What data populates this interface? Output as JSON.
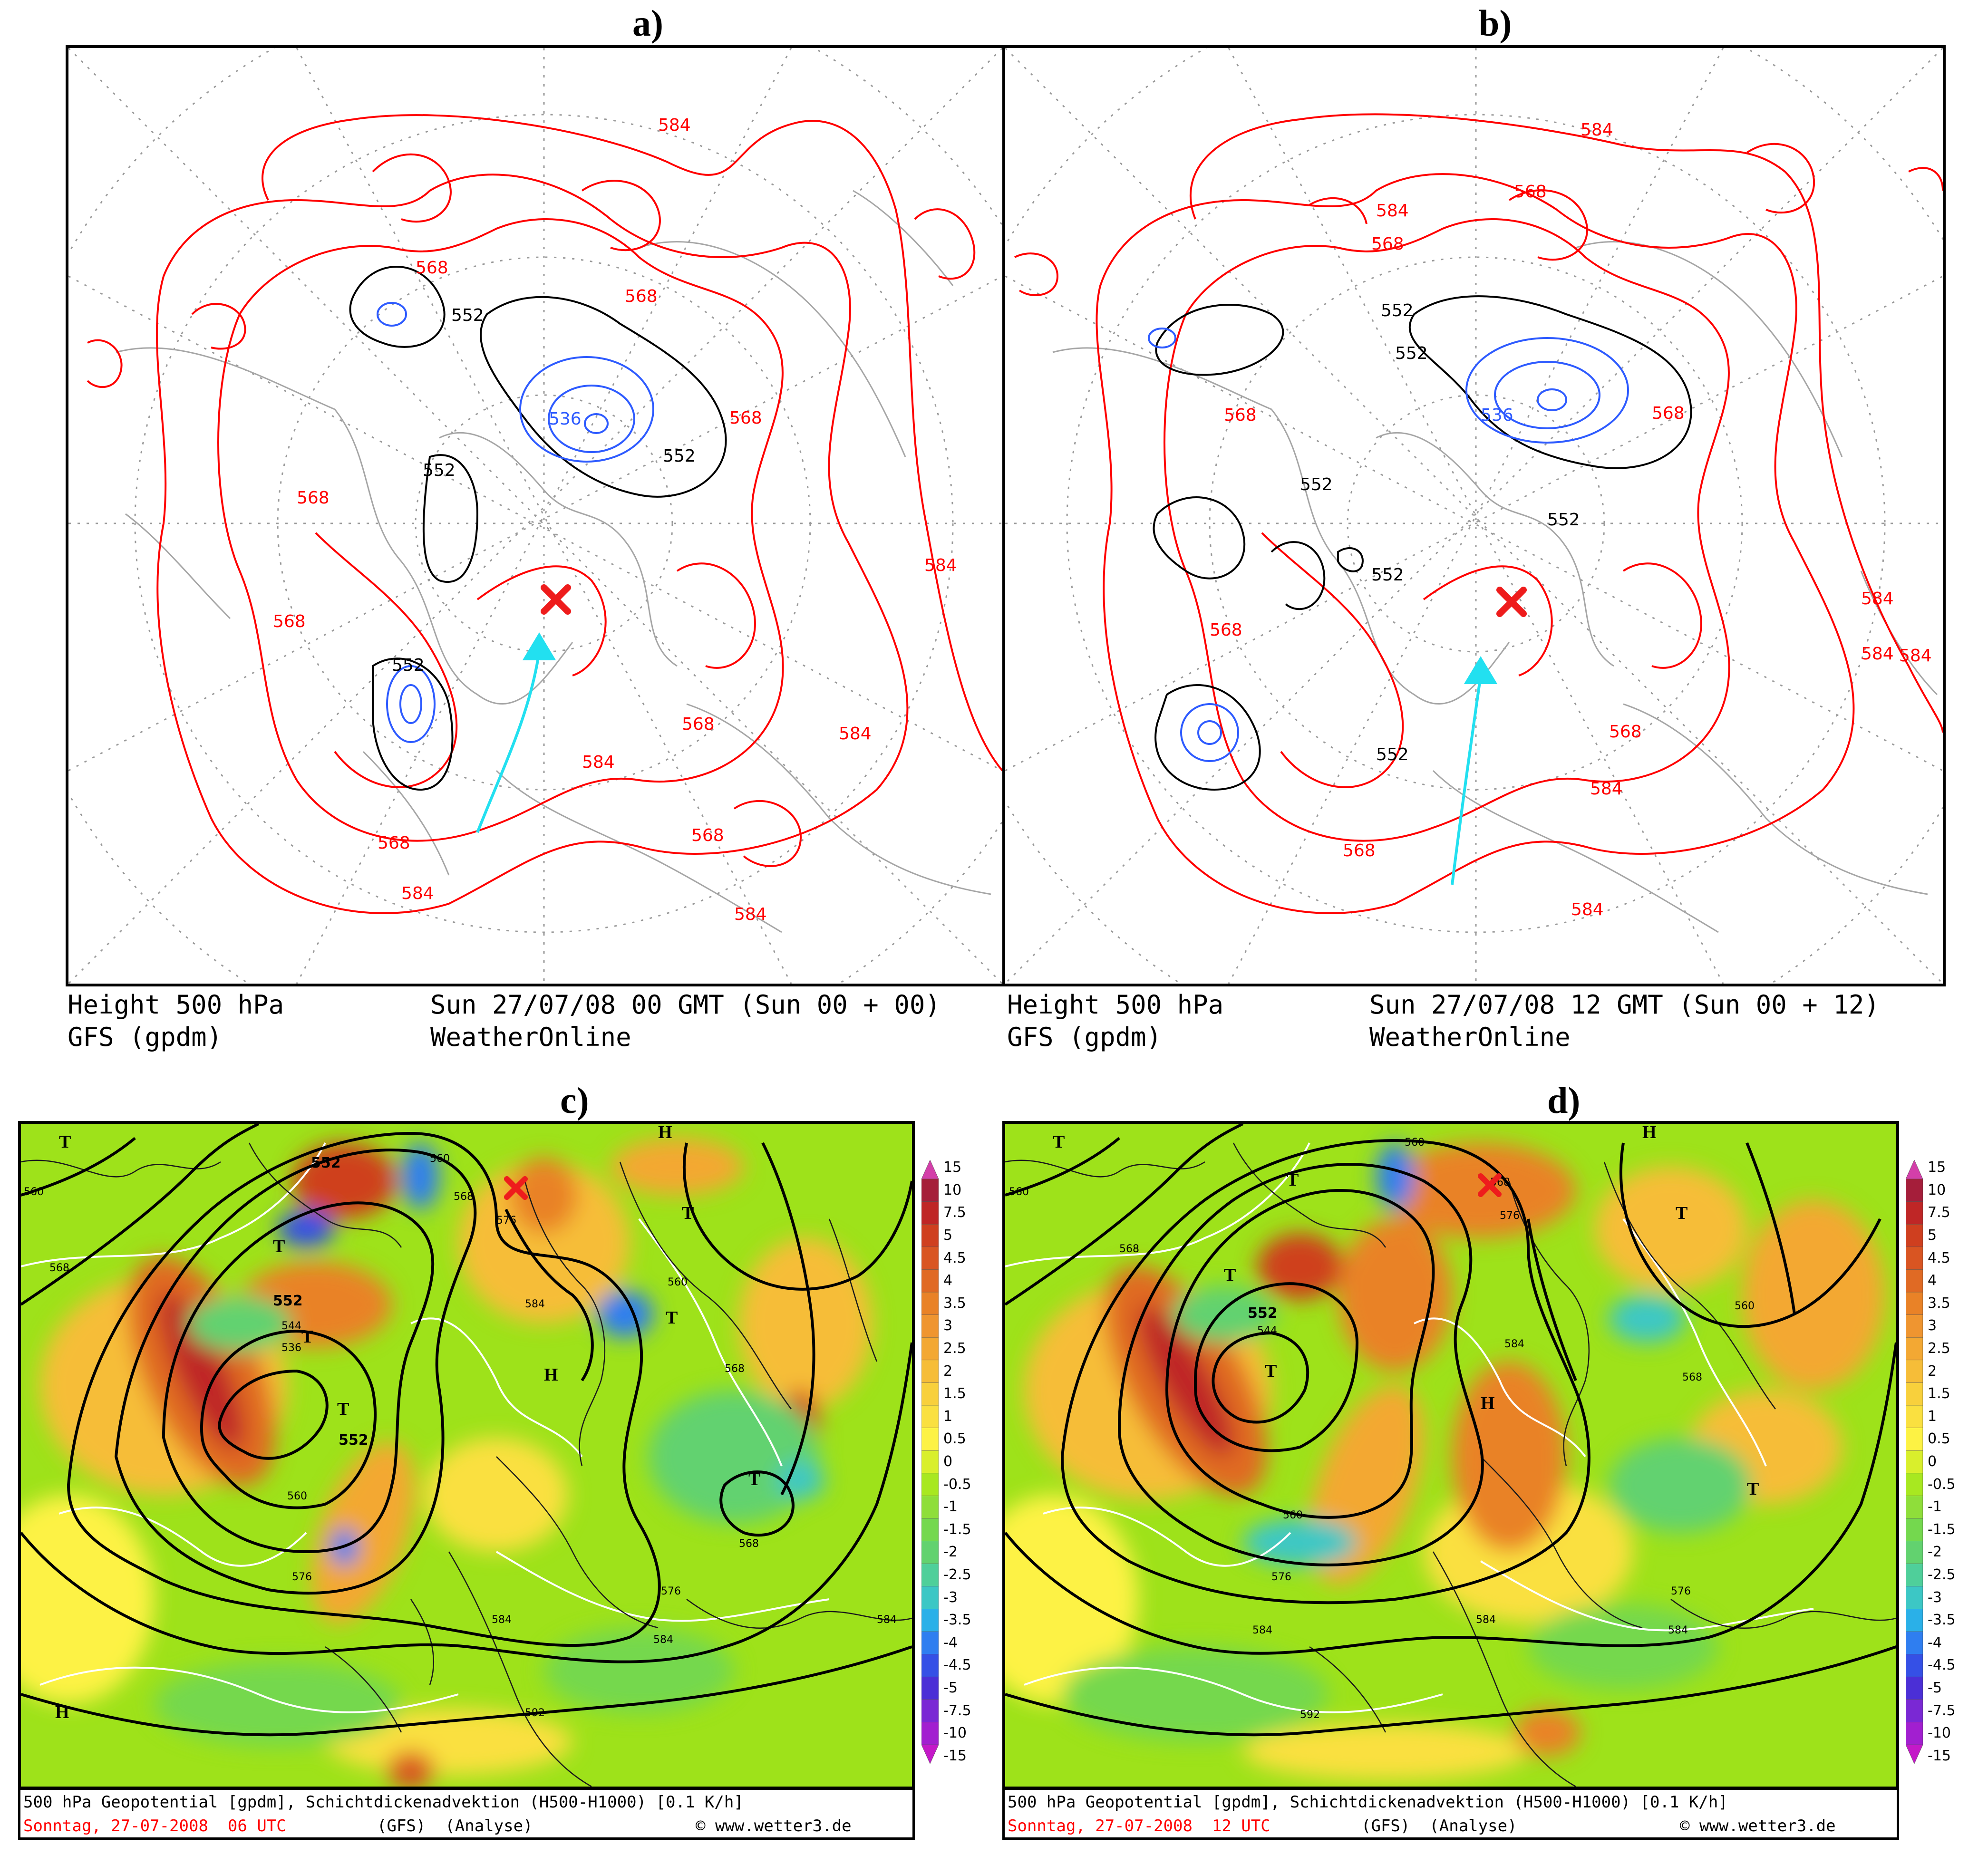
{
  "panels": [
    {
      "letter": "a)",
      "caption1_left": "Height 500 hPa",
      "caption1_right": "Sun 27/07/08 00 GMT (Sun 00 + 00)",
      "caption2_left": "GFS (gpdm)",
      "caption2_right": "WeatherOnline"
    },
    {
      "letter": "b)",
      "caption1_left": "Height 500 hPa",
      "caption1_right": "Sun 27/07/08 12 GMT (Sun 00 + 12)",
      "caption2_left": "GFS (gpdm)",
      "caption2_right": "WeatherOnline"
    },
    {
      "letter": "c)",
      "footer1": "500 hPa Geopotential [gpdm], Schichtdickenadvektion (H500-H1000) [0.1 K/h]",
      "footer2_date": "Sonntag, 27-07-2008  06 UTC",
      "footer2_model": "(GFS)  (Analyse)",
      "footer2_site": "www.wetter3.de"
    },
    {
      "letter": "d)",
      "footer1": "500 hPa Geopotential [gpdm], Schichtdickenadvektion (H500-H1000) [0.1 K/h]",
      "footer2_date": "Sonntag, 27-07-2008  12 UTC",
      "footer2_model": "(GFS)  (Analyse)",
      "footer2_site": "www.wetter3.de"
    }
  ],
  "contour_labels": {
    "a": [
      "584",
      "568",
      "568",
      "552",
      "536",
      "552",
      "552",
      "568",
      "568",
      "568",
      "552",
      "568",
      "584",
      "568",
      "584",
      "584",
      "568",
      "584",
      "584"
    ],
    "b": [
      "584",
      "568",
      "584",
      "568",
      "552",
      "552",
      "536",
      "568",
      "568",
      "552",
      "552",
      "552",
      "568",
      "552",
      "584",
      "568",
      "584",
      "568",
      "584",
      "584",
      "584",
      "584"
    ],
    "c": [
      "560",
      "568",
      "552",
      "552",
      "544",
      "536",
      "552",
      "560",
      "560",
      "568",
      "576",
      "584",
      "584",
      "576",
      "568",
      "560",
      "568",
      "576",
      "584",
      "592",
      "584"
    ],
    "d": [
      "560",
      "568",
      "552",
      "544",
      "560",
      "560",
      "568",
      "576",
      "584",
      "584",
      "576",
      "568",
      "560",
      "576",
      "584",
      "592",
      "584"
    ]
  },
  "pressure_symbols": {
    "c": [
      "T",
      "T",
      "T",
      "T",
      "T",
      "T",
      "H",
      "H",
      "T",
      "H"
    ],
    "d": [
      "T",
      "T",
      "T",
      "T",
      "T",
      "H",
      "T",
      "H"
    ]
  },
  "colorbar": {
    "labels": [
      "15",
      "10",
      "7.5",
      "5",
      "4.5",
      "4",
      "3.5",
      "3",
      "2.5",
      "2",
      "1.5",
      "1",
      "0.5",
      "0",
      "-0.5",
      "-1",
      "-1.5",
      "-2",
      "-2.5",
      "-3",
      "-3.5",
      "-4",
      "-4.5",
      "-5",
      "-7.5",
      "-10",
      "-15"
    ],
    "colors": [
      "#d33fa9",
      "#a51e3a",
      "#bf2626",
      "#cf3f1f",
      "#d95522",
      "#e06a24",
      "#e98227",
      "#ef9530",
      "#f3a833",
      "#f6bd38",
      "#f8d03c",
      "#fae040",
      "#fdf244",
      "#d9ef2c",
      "#a8e820",
      "#8fde3a",
      "#74d84e",
      "#62d26f",
      "#4fcf9a",
      "#3cc7c5",
      "#2ab0e8",
      "#2f7ef0",
      "#3550e6",
      "#4b2fd6",
      "#7a28d4",
      "#a21fd0",
      "#c419c8"
    ]
  },
  "colors": {
    "contour_red": "#ff0000",
    "contour_black": "#000000",
    "contour_blue": "#2e5bff",
    "coast_grey": "#a6a6a6",
    "arrow_cyan": "#22e0f0",
    "cross_red": "#ee1c1c"
  }
}
